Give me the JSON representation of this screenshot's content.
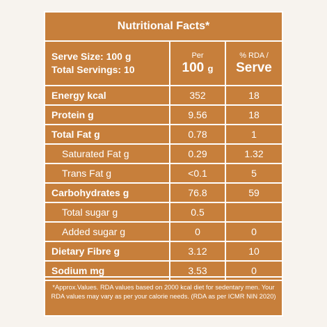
{
  "title": "Nutritional Facts*",
  "header": {
    "serve_size": "Serve Size: 100 g",
    "total_servings": "Total Servings: 10",
    "per_label": "Per",
    "per_value": "100",
    "per_unit": "g",
    "rda_label": "% RDA /",
    "rda_value": "Serve"
  },
  "rows": [
    {
      "name": "Energy kcal",
      "per": "352",
      "rda": "18"
    },
    {
      "name": "Protein g",
      "per": "9.56",
      "rda": "18"
    },
    {
      "name": "Total Fat g",
      "per": "0.78",
      "rda": "1"
    },
    {
      "name": "Saturated Fat g",
      "per": "0.29",
      "rda": "1.32"
    },
    {
      "name": "Trans Fat g",
      "per": "<0.1",
      "rda": "5"
    },
    {
      "name": "Carbohydrates g",
      "per": "76.8",
      "rda": "59"
    },
    {
      "name": "Total sugar g",
      "per": "0.5",
      "rda": ""
    },
    {
      "name": "Added sugar g",
      "per": "0",
      "rda": "0"
    },
    {
      "name": "Dietary Fibre g",
      "per": "3.12",
      "rda": "10"
    },
    {
      "name": "Sodium mg",
      "per": "3.53",
      "rda": "0"
    }
  ],
  "footnote": {
    "line1": "*Approx.Values. RDA values based on 2000 kcal diet for sedentary men. Your",
    "line2": "RDA values may vary as per your calorie needs. (RDA as per ICMR NIN 2020)"
  },
  "colors": {
    "panel": "#c77f3b",
    "text": "#ffffff",
    "background": "#f7f3ee"
  }
}
